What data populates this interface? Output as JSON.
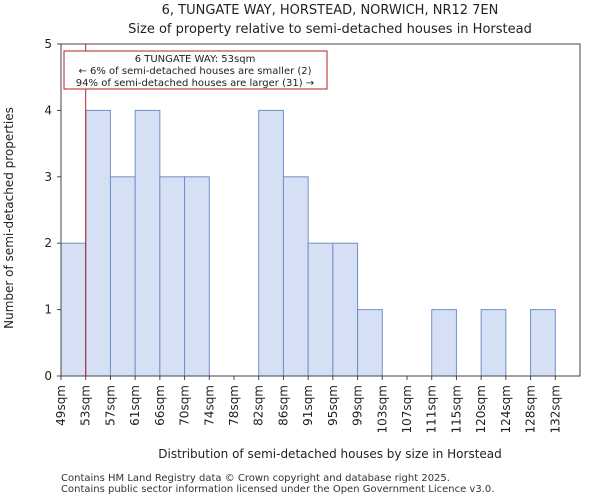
{
  "chart_data": {
    "type": "bar",
    "title": "6, TUNGATE WAY, HORSTEAD, NORWICH, NR12 7EN",
    "subtitle": "Size of property relative to semi-detached houses in Horstead",
    "xlabel": "Distribution of semi-detached houses by size in Horstead",
    "ylabel": "Number of semi-detached properties",
    "categories": [
      "49sqm",
      "53sqm",
      "57sqm",
      "61sqm",
      "66sqm",
      "70sqm",
      "74sqm",
      "78sqm",
      "82sqm",
      "86sqm",
      "91sqm",
      "95sqm",
      "99sqm",
      "103sqm",
      "107sqm",
      "111sqm",
      "115sqm",
      "120sqm",
      "124sqm",
      "128sqm",
      "132sqm"
    ],
    "values": [
      2,
      4,
      3,
      4,
      3,
      3,
      0,
      0,
      4,
      3,
      2,
      2,
      1,
      0,
      0,
      1,
      0,
      1,
      0,
      1,
      0
    ],
    "yticks": [
      0,
      1,
      2,
      3,
      4,
      5
    ],
    "ylim": [
      0,
      5
    ],
    "bar_color": "#d6e0f5",
    "bar_edge_color": "#7090c8",
    "marker": {
      "category_index": 1,
      "color": "#b22222",
      "lines": [
        "6 TUNGATE WAY: 53sqm",
        "← 6% of semi-detached houses are smaller (2)",
        "94% of semi-detached houses are larger (31) →"
      ]
    }
  },
  "footer": {
    "line1": "Contains HM Land Registry data © Crown copyright and database right 2025.",
    "line2": "Contains public sector information licensed under the Open Government Licence v3.0."
  }
}
